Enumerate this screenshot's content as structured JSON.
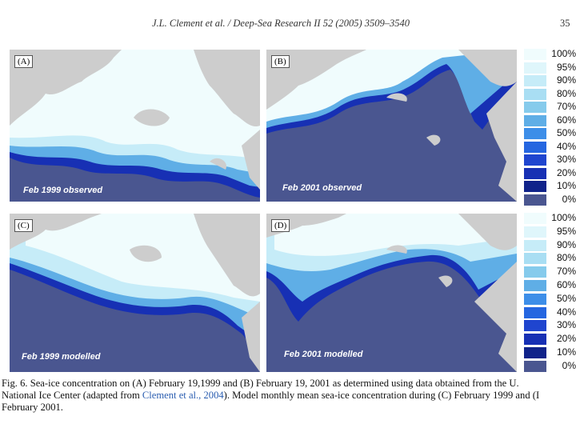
{
  "header": {
    "running_head": "J.L. Clement et al. / Deep-Sea Research II 52 (2005) 3509–3540",
    "page_number": "35"
  },
  "panels": [
    {
      "label": "(A)",
      "caption": "Feb 1999 observed"
    },
    {
      "label": "(B)",
      "caption": "Feb 2001 observed"
    },
    {
      "label": "(C)",
      "caption": "Feb 1999 modelled"
    },
    {
      "label": "(D)",
      "caption": "Feb 2001 modelled"
    }
  ],
  "legend": {
    "items": [
      {
        "label": "100%",
        "color": "#f0fcfd"
      },
      {
        "label": "95%",
        "color": "#dff6fb"
      },
      {
        "label": "90%",
        "color": "#c6ecf8"
      },
      {
        "label": "80%",
        "color": "#a9def3"
      },
      {
        "label": "70%",
        "color": "#86cbec"
      },
      {
        "label": "60%",
        "color": "#5faee6"
      },
      {
        "label": "50%",
        "color": "#3d8ee8"
      },
      {
        "label": "40%",
        "color": "#2566e0"
      },
      {
        "label": "30%",
        "color": "#1f45cf"
      },
      {
        "label": "20%",
        "color": "#1730b4"
      },
      {
        "label": "10%",
        "color": "#10238a"
      },
      {
        "label": "0%",
        "color": "#4a5690"
      }
    ]
  },
  "caption": {
    "line1": "Fig. 6. Sea-ice concentration on (A) February 19,1999 and (B) February 19, 2001 as determined using data obtained from the U.",
    "line2_a": "National Ice Center (adapted from ",
    "line2_cite": "Clement et al., 2004",
    "line2_b": "). Model monthly mean sea-ice concentration during (C) February 1999 and (I",
    "line3": "February 2001."
  }
}
